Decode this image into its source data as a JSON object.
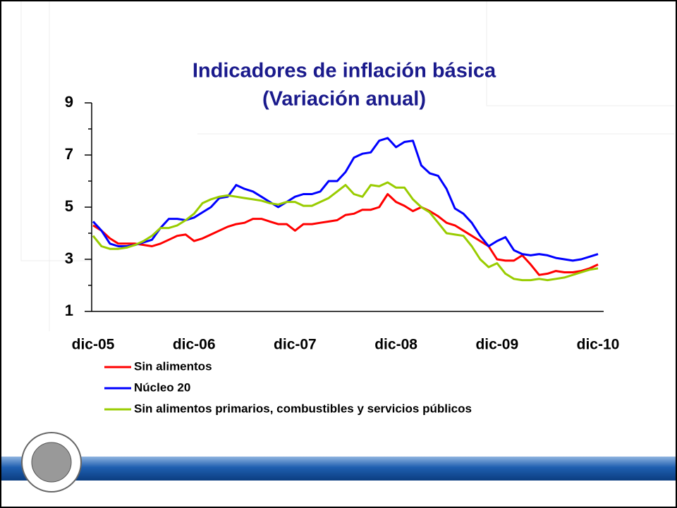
{
  "chart_data": {
    "type": "line",
    "title": "Indicadores de inflación básica",
    "subtitle": "(Variación anual)",
    "categories": [
      "dic-05",
      null,
      null,
      null,
      null,
      null,
      null,
      null,
      null,
      null,
      null,
      null,
      "dic-06",
      null,
      null,
      null,
      null,
      null,
      null,
      null,
      null,
      null,
      null,
      null,
      "dic-07",
      null,
      null,
      null,
      null,
      null,
      null,
      null,
      null,
      null,
      null,
      null,
      "dic-08",
      null,
      null,
      null,
      null,
      null,
      null,
      null,
      null,
      null,
      null,
      null,
      "dic-09",
      null,
      null,
      null,
      null,
      null,
      null,
      null,
      null,
      null,
      null,
      null,
      "dic-10"
    ],
    "series": [
      {
        "name": "Sin alimentos",
        "color": "#ff0000",
        "values": [
          4.3,
          4.1,
          3.8,
          3.6,
          3.6,
          3.6,
          3.55,
          3.5,
          3.6,
          3.75,
          3.9,
          3.95,
          3.7,
          3.8,
          3.95,
          4.1,
          4.25,
          4.35,
          4.4,
          4.55,
          4.55,
          4.45,
          4.35,
          4.35,
          4.1,
          4.35,
          4.35,
          4.4,
          4.45,
          4.5,
          4.7,
          4.75,
          4.9,
          4.9,
          5.0,
          5.5,
          5.2,
          5.05,
          4.85,
          5.0,
          4.85,
          4.65,
          4.4,
          4.3,
          4.1,
          3.9,
          3.7,
          3.5,
          3.0,
          2.95,
          2.95,
          3.15,
          2.8,
          2.4,
          2.45,
          2.55,
          2.5,
          2.5,
          2.55,
          2.65,
          2.8
        ]
      },
      {
        "name": "Núcleo 20",
        "color": "#0000ff",
        "values": [
          4.45,
          4.1,
          3.6,
          3.5,
          3.5,
          3.55,
          3.65,
          3.75,
          4.2,
          4.55,
          4.55,
          4.5,
          4.6,
          4.8,
          5.0,
          5.35,
          5.4,
          5.85,
          5.7,
          5.6,
          5.4,
          5.2,
          5.0,
          5.2,
          5.4,
          5.5,
          5.5,
          5.6,
          6.0,
          6.0,
          6.35,
          6.9,
          7.05,
          7.1,
          7.55,
          7.65,
          7.3,
          7.5,
          7.55,
          6.6,
          6.3,
          6.2,
          5.7,
          4.95,
          4.75,
          4.4,
          3.9,
          3.5,
          3.7,
          3.85,
          3.35,
          3.2,
          3.15,
          3.2,
          3.15,
          3.05,
          3.0,
          2.95,
          3.0,
          3.1,
          3.2
        ]
      },
      {
        "name": "Sin alimentos primarios, combustibles y servicios públicos",
        "color": "#99cc00",
        "values": [
          3.9,
          3.5,
          3.4,
          3.4,
          3.45,
          3.55,
          3.7,
          3.9,
          4.2,
          4.2,
          4.3,
          4.5,
          4.75,
          5.15,
          5.3,
          5.4,
          5.45,
          5.4,
          5.35,
          5.3,
          5.25,
          5.15,
          5.1,
          5.2,
          5.2,
          5.05,
          5.05,
          5.2,
          5.35,
          5.6,
          5.85,
          5.5,
          5.4,
          5.85,
          5.8,
          5.95,
          5.75,
          5.75,
          5.3,
          5.0,
          4.8,
          4.4,
          4.0,
          3.95,
          3.9,
          3.5,
          3.0,
          2.7,
          2.85,
          2.45,
          2.25,
          2.2,
          2.2,
          2.25,
          2.2,
          2.25,
          2.3,
          2.4,
          2.5,
          2.6,
          2.65
        ]
      }
    ],
    "ylim": [
      1,
      9
    ],
    "yticks": [
      1,
      3,
      5,
      7,
      9
    ],
    "yminorticks": [
      2,
      4,
      6,
      8
    ],
    "grid": false
  }
}
